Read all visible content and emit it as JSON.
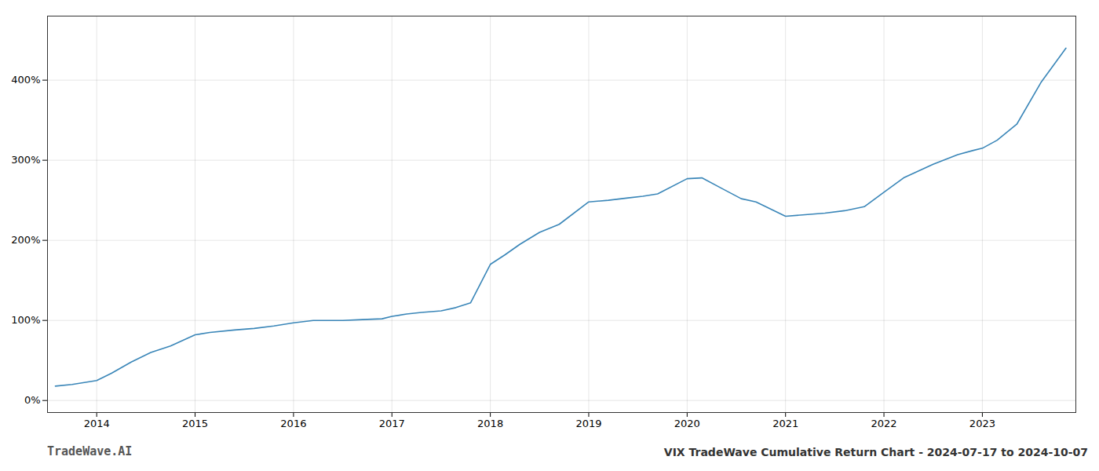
{
  "chart_data": {
    "type": "line",
    "title": "VIX TradeWave Cumulative Return Chart - 2024-07-17 to 2024-10-07",
    "annotations": [
      "TradeWave.AI"
    ],
    "x": [
      2013.58,
      2013.75,
      2014.0,
      2014.15,
      2014.35,
      2014.55,
      2014.75,
      2015.0,
      2015.15,
      2015.4,
      2015.6,
      2015.8,
      2016.0,
      2016.2,
      2016.5,
      2016.7,
      2016.9,
      2017.0,
      2017.15,
      2017.3,
      2017.5,
      2017.65,
      2017.8,
      2018.0,
      2018.15,
      2018.3,
      2018.5,
      2018.7,
      2019.0,
      2019.2,
      2019.4,
      2019.55,
      2019.7,
      2020.0,
      2020.15,
      2020.35,
      2020.55,
      2020.7,
      2021.0,
      2021.2,
      2021.4,
      2021.6,
      2021.8,
      2022.0,
      2022.2,
      2022.5,
      2022.75,
      2022.9,
      2023.0,
      2023.15,
      2023.35,
      2023.6,
      2023.85
    ],
    "values": [
      18,
      20,
      25,
      34,
      48,
      60,
      68,
      82,
      85,
      88,
      90,
      93,
      97,
      100,
      100,
      101,
      102,
      105,
      108,
      110,
      112,
      116,
      122,
      170,
      182,
      195,
      210,
      220,
      248,
      250,
      253,
      255,
      258,
      277,
      278,
      265,
      252,
      248,
      230,
      232,
      234,
      237,
      242,
      260,
      278,
      295,
      307,
      312,
      315,
      325,
      345,
      398,
      440
    ],
    "color": "#3a86b8",
    "xlim": [
      2013.5,
      2023.95
    ],
    "xticks": [
      2014,
      2015,
      2016,
      2017,
      2018,
      2019,
      2020,
      2021,
      2022,
      2023
    ],
    "ylim": [
      -15,
      480
    ],
    "yticks": [
      {
        "value": 0,
        "label": "0%"
      },
      {
        "value": 100,
        "label": "100%"
      },
      {
        "value": 200,
        "label": "200%"
      },
      {
        "value": 300,
        "label": "300%"
      },
      {
        "value": 400,
        "label": "400%"
      }
    ],
    "grid": true
  }
}
